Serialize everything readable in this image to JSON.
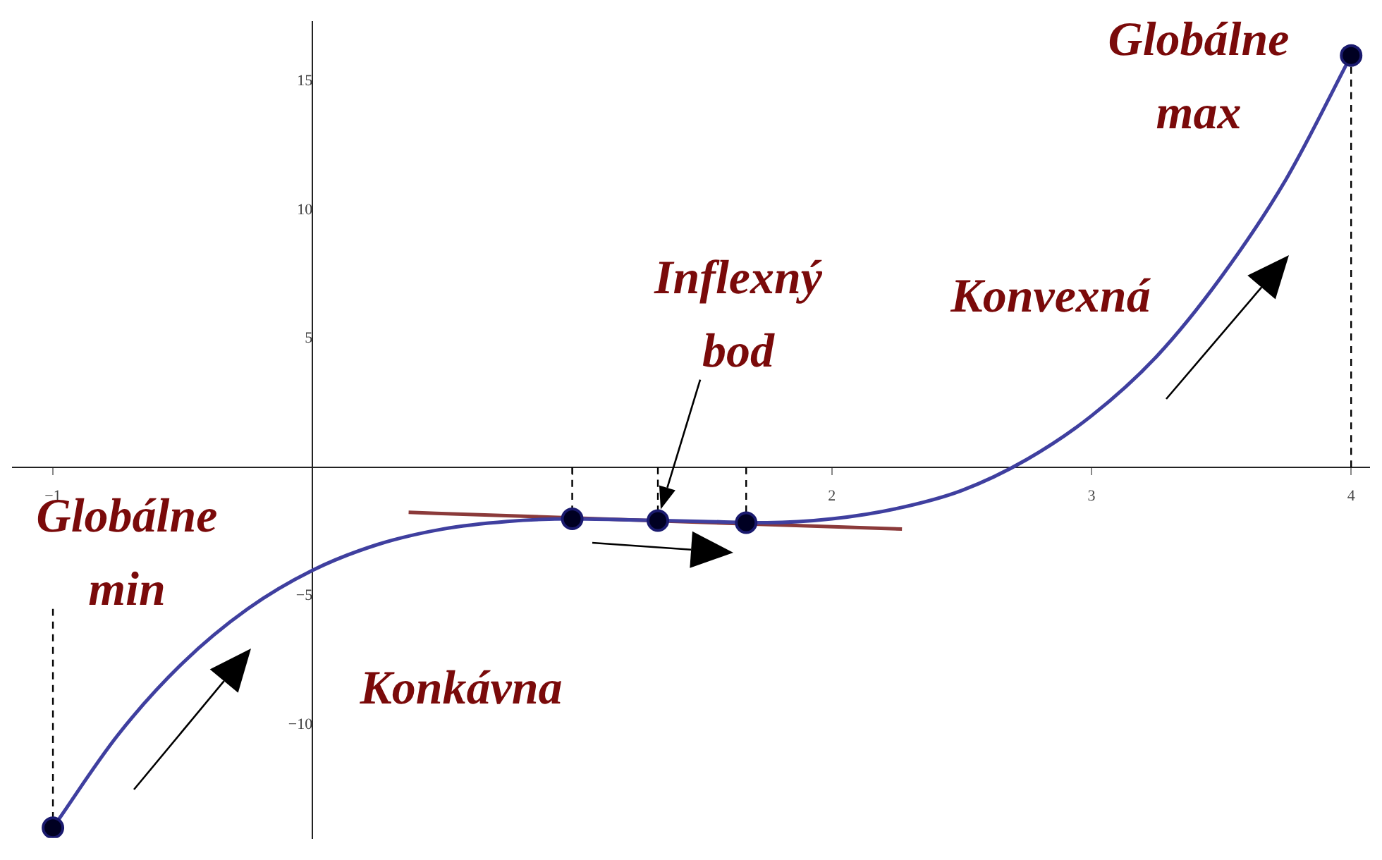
{
  "chart_data": {
    "type": "line",
    "xlim": [
      -1.155,
      4.07
    ],
    "ylim": [
      -14.4,
      17.3
    ],
    "xticks": [
      -1,
      {
        "value": 1,
        "label": null
      },
      2,
      3,
      4
    ],
    "yticks": [
      -10,
      -5,
      5,
      10,
      15
    ],
    "grid": false,
    "legend": false,
    "marker": "none",
    "series": [
      {
        "color": "#3f3f9f",
        "x": [
          -1,
          -0.75,
          -0.5,
          -0.25,
          0,
          0.25,
          0.5,
          0.75,
          1,
          1.25,
          1.5,
          1.75,
          2,
          2.25,
          2.5,
          2.75,
          3,
          3.25,
          3.5,
          3.75,
          4
        ],
        "values": [
          -14,
          -10.4,
          -7.6,
          -5.5,
          -4,
          -3,
          -2.4,
          -2.1,
          -2,
          -2.05,
          -2.1,
          -2.15,
          -2,
          -1.6,
          -0.9,
          0.3,
          2,
          4.3,
          7.4,
          11.2,
          16
        ]
      },
      {
        "type": "line",
        "color": "#8b3a3a",
        "x": [
          0.37,
          2.27
        ],
        "values": [
          -1.75,
          -2.4
        ]
      },
      {
        "type": "line",
        "color": "#000000",
        "line_style": "dashed",
        "x": [
          -1,
          -1
        ],
        "values": [
          -5.5,
          -14
        ]
      },
      {
        "type": "line",
        "color": "#000000",
        "line_style": "dashed",
        "x": [
          1,
          1
        ],
        "values": [
          0,
          -2
        ]
      },
      {
        "type": "line",
        "color": "#000000",
        "line_style": "dashed",
        "x": [
          1.33,
          1.33
        ],
        "values": [
          0,
          -2.07
        ]
      },
      {
        "type": "line",
        "color": "#000000",
        "line_style": "dashed",
        "x": [
          1.67,
          1.67
        ],
        "values": [
          0,
          -2.15
        ]
      },
      {
        "type": "line",
        "color": "#000000",
        "line_style": "dashed",
        "x": [
          4,
          4
        ],
        "values": [
          0,
          16
        ]
      },
      {
        "type": "scatter",
        "marker": "circle",
        "color": "#000022",
        "x": [
          -1,
          1,
          1.33,
          1.67,
          4
        ],
        "values": [
          -14,
          -2,
          -2.07,
          -2.15,
          16
        ]
      }
    ],
    "annotations": [
      "Globálne min",
      "Globálne max",
      {
        "text": "Inflexný bod",
        "x": 1.33,
        "y": -2.07
      },
      "Konvexná",
      "Konkávna"
    ]
  }
}
